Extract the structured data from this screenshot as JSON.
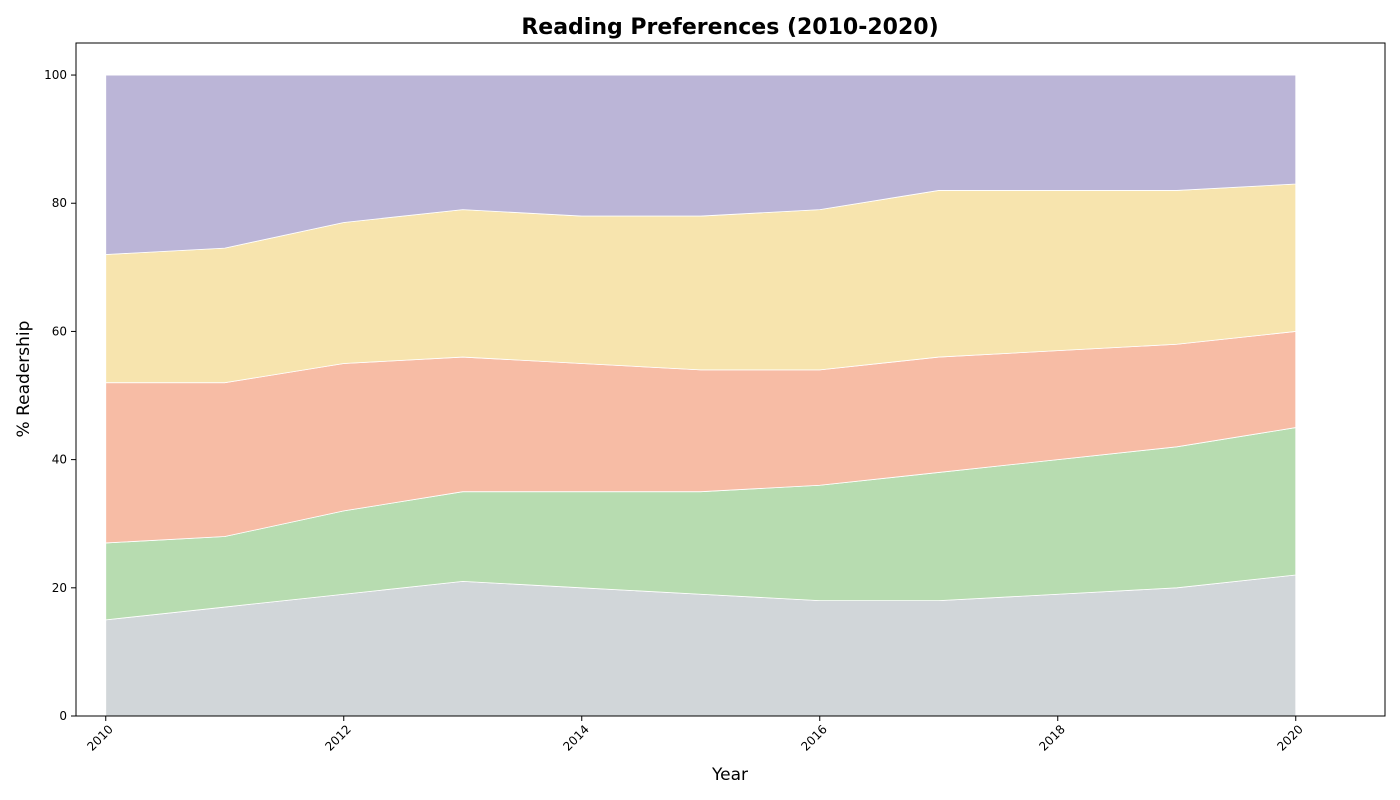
{
  "chart_data": {
    "type": "area",
    "stacked": true,
    "title": "Reading Preferences (2010-2020)",
    "xlabel": "Year",
    "ylabel": "% Readership",
    "x": [
      2010,
      2011,
      2012,
      2013,
      2014,
      2015,
      2016,
      2017,
      2018,
      2019,
      2020
    ],
    "xlim": [
      2009.75,
      2020.75
    ],
    "ylim": [
      0,
      105
    ],
    "xticks": [
      2010,
      2012,
      2014,
      2016,
      2018,
      2020
    ],
    "yticks": [
      0,
      20,
      40,
      60,
      80,
      100
    ],
    "grid": false,
    "legend": "none",
    "series": [
      {
        "color": "#d1d6d9",
        "values": [
          15,
          17,
          19,
          21,
          20,
          19,
          18,
          18,
          19,
          20,
          22
        ]
      },
      {
        "color": "#b7dcb0",
        "values": [
          12,
          11,
          13,
          14,
          15,
          16,
          18,
          20,
          21,
          22,
          23
        ]
      },
      {
        "color": "#f7bca5",
        "values": [
          25,
          24,
          23,
          21,
          20,
          19,
          18,
          18,
          17,
          16,
          15
        ]
      },
      {
        "color": "#f7e4ae",
        "values": [
          20,
          21,
          22,
          23,
          23,
          24,
          25,
          26,
          25,
          24,
          23
        ]
      },
      {
        "color": "#bbb5d7",
        "values": [
          28,
          27,
          23,
          21,
          22,
          22,
          21,
          18,
          18,
          18,
          17
        ]
      }
    ]
  }
}
